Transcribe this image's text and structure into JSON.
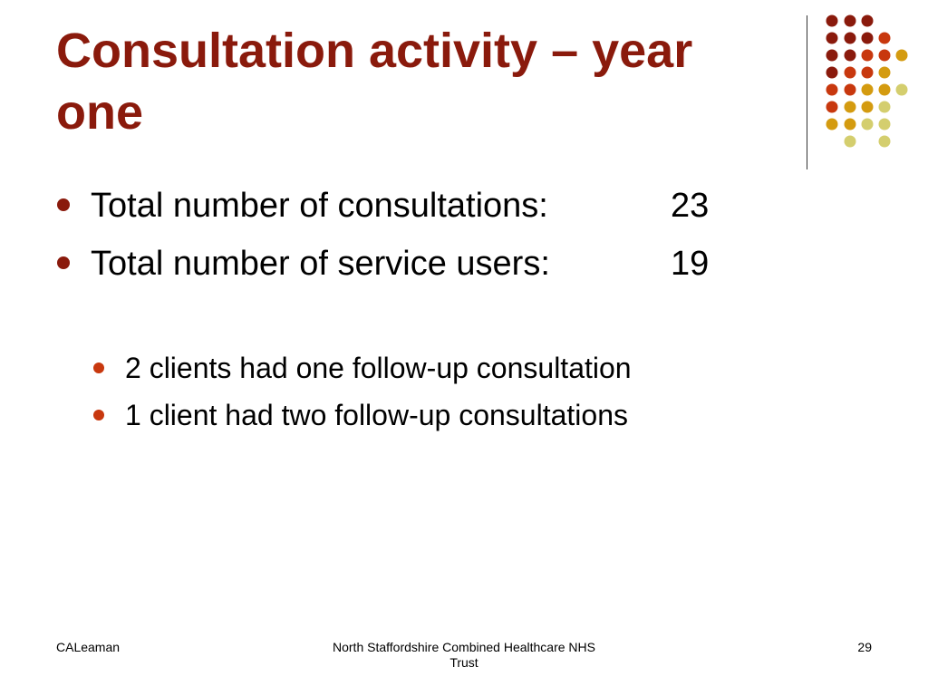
{
  "slide": {
    "title": "Consultation activity – year one",
    "bullets": [
      {
        "label": "Total number of consultations:",
        "value": "23"
      },
      {
        "label": "Total number of service users:",
        "value": "19"
      }
    ],
    "sub_bullets": [
      {
        "text": "2 clients had one follow-up consultation"
      },
      {
        "text": "1 client had two follow-up consultations"
      }
    ]
  },
  "footer": {
    "author": "CALeaman",
    "organization": "North Staffordshire Combined Healthcare NHS Trust",
    "page_number": "29"
  },
  "decoration": {
    "dot_colors": {
      "dark_red": "#8a1a0c",
      "orange_red": "#c8380e",
      "gold": "#d49b10",
      "khaki": "#d4ce6e"
    }
  }
}
